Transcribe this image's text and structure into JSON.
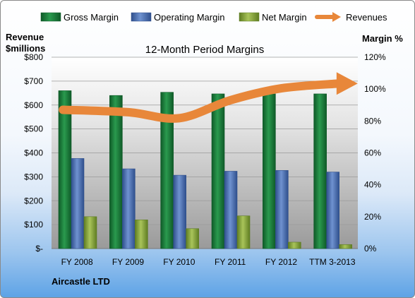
{
  "chart_data": {
    "type": "bar",
    "title": "12-Month Period Margins",
    "left_axis_label_line1": "Revenue",
    "left_axis_label_line2": "$millions",
    "right_axis_label": "Margin %",
    "categories": [
      "FY 2008",
      "FY 2009",
      "FY 2010",
      "FY 2011",
      "FY 2012",
      "TTM 3-2013"
    ],
    "left_ticks": [
      "$-",
      "$100",
      "$200",
      "$300",
      "$400",
      "$500",
      "$600",
      "$700",
      "$800"
    ],
    "right_ticks": [
      "0%",
      "20%",
      "40%",
      "60%",
      "80%",
      "100%",
      "120%"
    ],
    "ylim_left": [
      0,
      800
    ],
    "ylim_right": [
      0,
      120
    ],
    "legend_position": "top",
    "grid": true,
    "series": [
      {
        "name": "Gross Margin",
        "kind": "bar",
        "axis": "right",
        "color": "#1f7a3f",
        "values": [
          99,
          96,
          98,
          97,
          97,
          97
        ]
      },
      {
        "name": "Operating Margin",
        "kind": "bar",
        "axis": "right",
        "color": "#4a6fb5",
        "values": [
          56.5,
          50,
          46,
          48.5,
          49,
          48
        ]
      },
      {
        "name": "Net Margin",
        "kind": "bar",
        "axis": "right",
        "color": "#8aaa3c",
        "values": [
          20,
          18,
          12.5,
          20.5,
          4,
          2.5
        ]
      },
      {
        "name": "Revenues",
        "kind": "arrow-line",
        "axis": "left",
        "color": "#e8873a",
        "values": [
          580,
          570,
          545,
          620,
          670,
          690
        ]
      }
    ],
    "footer_label": "Aircastle LTD"
  }
}
